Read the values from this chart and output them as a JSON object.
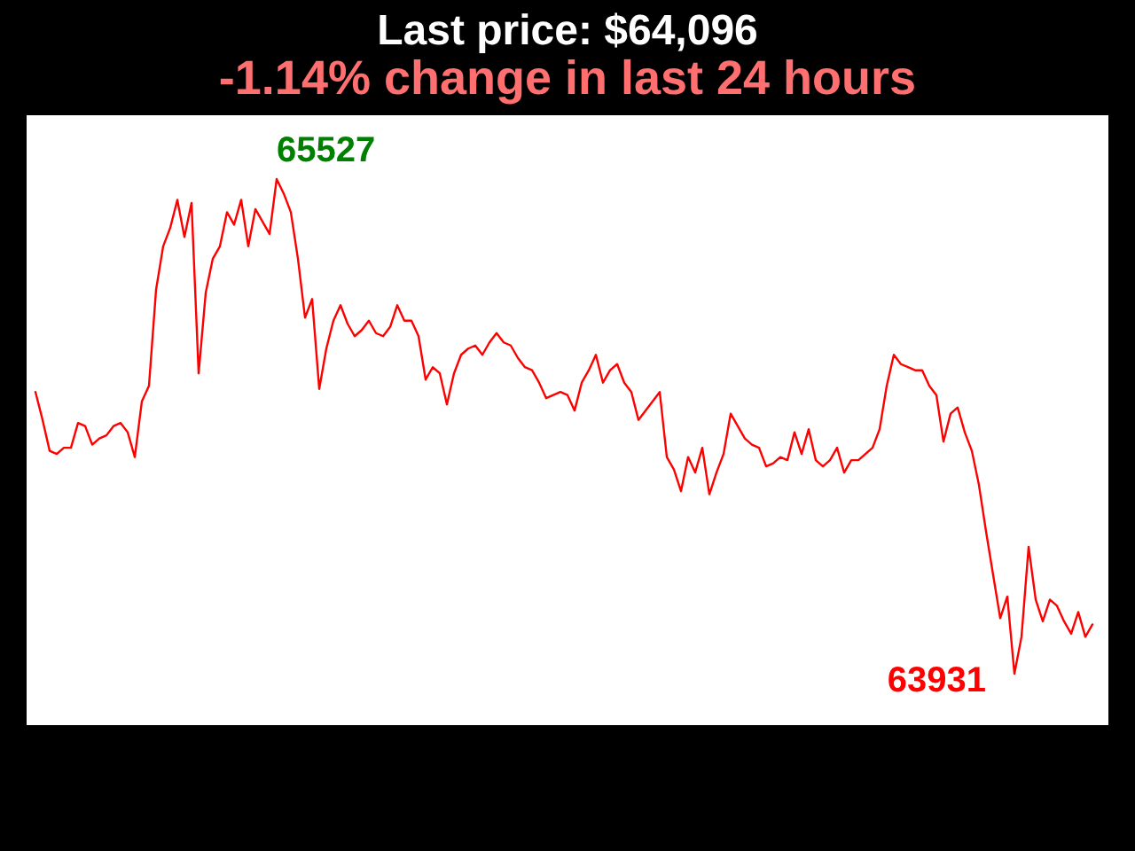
{
  "chart_data": {
    "type": "line",
    "title": "Last price: $64,096",
    "subtitle": "-1.14% change in last 24 hours",
    "categories": [
      null,
      null,
      null,
      null,
      null,
      null,
      null,
      null,
      null,
      null,
      null,
      null,
      null,
      null,
      null,
      null,
      null,
      null,
      null,
      null,
      null,
      null,
      null,
      null,
      null,
      null,
      null,
      null,
      null,
      null,
      null,
      null,
      null,
      null,
      null,
      null,
      null,
      null,
      null,
      null,
      null,
      null,
      null,
      null,
      null,
      null,
      null,
      null,
      null,
      null,
      null,
      null,
      null,
      null,
      null,
      null,
      null,
      null,
      null,
      null,
      null,
      null,
      null,
      null,
      null,
      null,
      null,
      null,
      null,
      null,
      null,
      null,
      null,
      null,
      null,
      null,
      null,
      null,
      null,
      null,
      null,
      null,
      null,
      null,
      null,
      null,
      null,
      null,
      null,
      null,
      null,
      null,
      null,
      null,
      null,
      null,
      null,
      null,
      null,
      null,
      null,
      null,
      null,
      null,
      null,
      null,
      null,
      null,
      null,
      null,
      null,
      null,
      null,
      null,
      null,
      null,
      null,
      null,
      null,
      null,
      null,
      null,
      null,
      null,
      null,
      null,
      null,
      null,
      null,
      null,
      null,
      null,
      null,
      null,
      null,
      null,
      null,
      null,
      null,
      null,
      null,
      null,
      null,
      null,
      null,
      null,
      null,
      null,
      null,
      null
    ],
    "values": [
      64840,
      64750,
      64650,
      64640,
      64660,
      64660,
      64740,
      64730,
      64670,
      64690,
      64700,
      64730,
      64740,
      64710,
      64630,
      64810,
      64860,
      65170,
      65310,
      65370,
      65460,
      65340,
      65450,
      64900,
      65160,
      65270,
      65310,
      65420,
      65380,
      65460,
      65310,
      65430,
      65390,
      65350,
      65527,
      65480,
      65420,
      65270,
      65080,
      65140,
      64850,
      64980,
      65070,
      65120,
      65060,
      65020,
      65040,
      65070,
      65030,
      65020,
      65050,
      65120,
      65070,
      65070,
      65020,
      64880,
      64920,
      64900,
      64800,
      64900,
      64960,
      64980,
      64990,
      64960,
      65000,
      65030,
      65000,
      64990,
      64950,
      64920,
      64910,
      64870,
      64820,
      64830,
      64840,
      64830,
      64780,
      64870,
      64910,
      64960,
      64870,
      64910,
      64930,
      64870,
      64840,
      64750,
      64780,
      64810,
      64840,
      64630,
      64590,
      64520,
      64630,
      64580,
      64660,
      64510,
      64580,
      64640,
      64770,
      64730,
      64690,
      64670,
      64660,
      64600,
      64610,
      64630,
      64620,
      64710,
      64640,
      64720,
      64620,
      64600,
      64620,
      64660,
      64580,
      64620,
      64620,
      64640,
      64660,
      64720,
      64860,
      64960,
      64930,
      64920,
      64910,
      64910,
      64860,
      64830,
      64680,
      64770,
      64790,
      64710,
      64650,
      64540,
      64390,
      64250,
      64110,
      64180,
      63931,
      64050,
      64340,
      64170,
      64100,
      64170,
      64150,
      64100,
      64060,
      64130,
      64050,
      64090
    ],
    "value_labels": [
      null,
      null,
      null,
      null,
      null,
      null,
      null,
      null,
      null,
      null,
      null,
      null,
      null,
      null,
      null,
      null,
      null,
      null,
      null,
      null,
      null,
      null,
      null,
      null,
      null,
      null,
      null,
      null,
      null,
      null,
      null,
      null,
      null,
      null,
      "65527",
      null,
      null,
      null,
      null,
      null,
      null,
      null,
      null,
      null,
      null,
      null,
      null,
      null,
      null,
      null,
      null,
      null,
      null,
      null,
      null,
      null,
      null,
      null,
      null,
      null,
      null,
      null,
      null,
      null,
      null,
      null,
      null,
      null,
      null,
      null,
      null,
      null,
      null,
      null,
      null,
      null,
      null,
      null,
      null,
      null,
      null,
      null,
      null,
      null,
      null,
      null,
      null,
      null,
      null,
      null,
      null,
      null,
      null,
      null,
      null,
      null,
      null,
      null,
      null,
      null,
      null,
      null,
      null,
      null,
      null,
      null,
      null,
      null,
      null,
      null,
      null,
      null,
      null,
      null,
      null,
      null,
      null,
      null,
      null,
      null,
      null,
      null,
      null,
      null,
      null,
      null,
      null,
      null,
      null,
      null,
      null,
      null,
      null,
      null,
      null,
      null,
      null,
      null,
      "63931",
      null,
      null,
      null,
      null,
      null,
      null,
      null,
      null,
      null,
      null,
      null
    ],
    "color": "#ff0000"
  }
}
